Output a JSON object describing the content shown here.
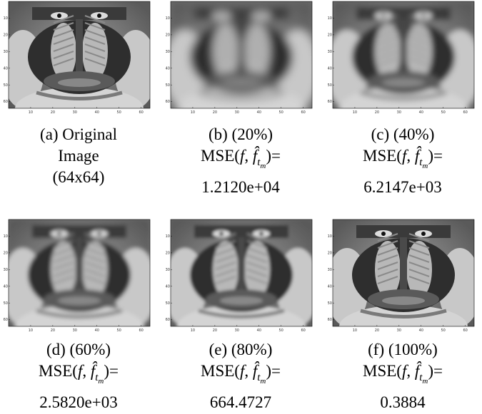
{
  "figure": {
    "panels": [
      {
        "id": "a",
        "lines": [
          "(a) Original",
          "Image",
          "(64x64)"
        ],
        "has_mse": false,
        "mse_value": ""
      },
      {
        "id": "b",
        "lines": [
          "(b) (20%)"
        ],
        "has_mse": true,
        "mse_value": "1.2120e+04"
      },
      {
        "id": "c",
        "lines": [
          "(c) (40%)"
        ],
        "has_mse": true,
        "mse_value": "6.2147e+03"
      },
      {
        "id": "d",
        "lines": [
          "(d) (60%)"
        ],
        "has_mse": true,
        "mse_value": "2.5820e+03"
      },
      {
        "id": "e",
        "lines": [
          "(e) (80%)"
        ],
        "has_mse": true,
        "mse_value": "664.4727"
      },
      {
        "id": "f",
        "lines": [
          "(f) (100%)"
        ],
        "has_mse": true,
        "mse_value": "0.3884"
      }
    ],
    "mse_label": {
      "prefix": "MSE(",
      "f": "f",
      "comma": ", ",
      "fhat": "f̂",
      "sub": "t",
      "subsub": "m",
      "suffix": ")="
    },
    "x_ticks": [
      "10",
      "20",
      "30",
      "40",
      "50",
      "60"
    ],
    "y_ticks": [
      "10",
      "20",
      "30",
      "40",
      "50",
      "60"
    ]
  }
}
